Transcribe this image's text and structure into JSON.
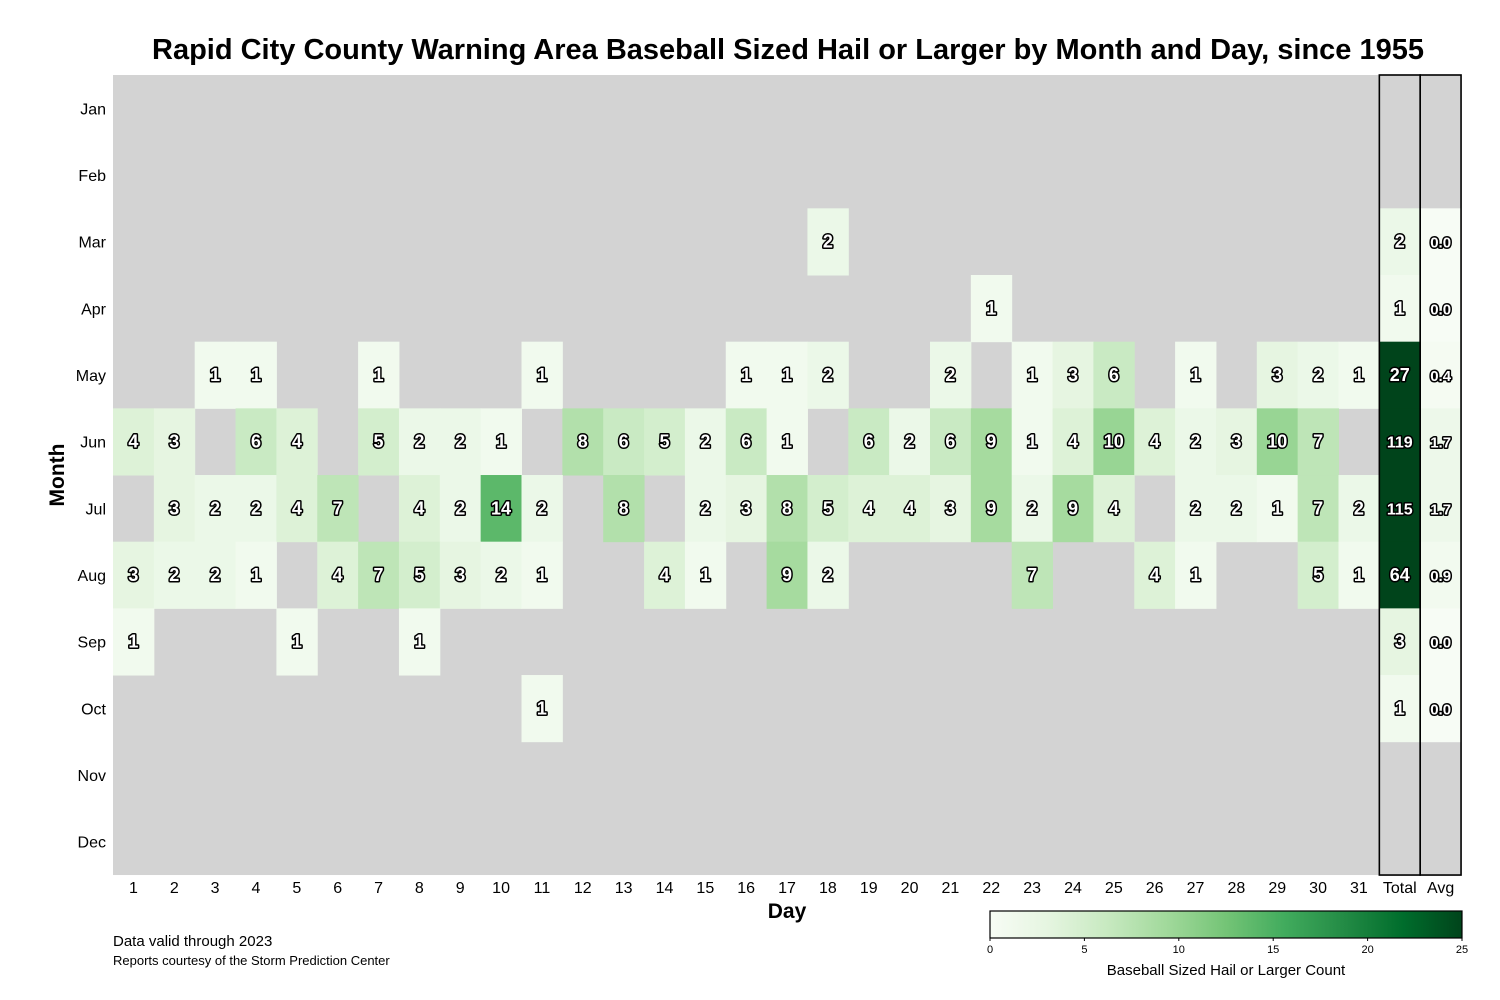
{
  "chart_data": {
    "type": "heatmap",
    "title": "Rapid City County Warning Area Baseball Sized Hail or Larger by Month and Day, since 1955",
    "xlabel": "Day",
    "ylabel": "Month",
    "x_categories": [
      "1",
      "2",
      "3",
      "4",
      "5",
      "6",
      "7",
      "8",
      "9",
      "10",
      "11",
      "12",
      "13",
      "14",
      "15",
      "16",
      "17",
      "18",
      "19",
      "20",
      "21",
      "22",
      "23",
      "24",
      "25",
      "26",
      "27",
      "28",
      "29",
      "30",
      "31"
    ],
    "summary_columns": [
      "Total",
      "Avg"
    ],
    "months": [
      "Jan",
      "Feb",
      "Mar",
      "Apr",
      "May",
      "Jun",
      "Jul",
      "Aug",
      "Sep",
      "Oct",
      "Nov",
      "Dec"
    ],
    "values": [
      [
        null,
        null,
        null,
        null,
        null,
        null,
        null,
        null,
        null,
        null,
        null,
        null,
        null,
        null,
        null,
        null,
        null,
        null,
        null,
        null,
        null,
        null,
        null,
        null,
        null,
        null,
        null,
        null,
        null,
        null,
        null
      ],
      [
        null,
        null,
        null,
        null,
        null,
        null,
        null,
        null,
        null,
        null,
        null,
        null,
        null,
        null,
        null,
        null,
        null,
        null,
        null,
        null,
        null,
        null,
        null,
        null,
        null,
        null,
        null,
        null,
        null,
        null,
        null
      ],
      [
        null,
        null,
        null,
        null,
        null,
        null,
        null,
        null,
        null,
        null,
        null,
        null,
        null,
        null,
        null,
        null,
        null,
        2,
        null,
        null,
        null,
        null,
        null,
        null,
        null,
        null,
        null,
        null,
        null,
        null,
        null
      ],
      [
        null,
        null,
        null,
        null,
        null,
        null,
        null,
        null,
        null,
        null,
        null,
        null,
        null,
        null,
        null,
        null,
        null,
        null,
        null,
        null,
        null,
        1,
        null,
        null,
        null,
        null,
        null,
        null,
        null,
        null,
        null
      ],
      [
        null,
        null,
        1,
        1,
        null,
        null,
        1,
        null,
        null,
        null,
        1,
        null,
        null,
        null,
        null,
        1,
        1,
        2,
        null,
        null,
        2,
        null,
        1,
        3,
        6,
        null,
        1,
        null,
        3,
        2,
        1
      ],
      [
        4,
        3,
        null,
        6,
        4,
        null,
        5,
        2,
        2,
        1,
        null,
        8,
        6,
        5,
        2,
        6,
        1,
        null,
        6,
        2,
        6,
        9,
        1,
        4,
        10,
        4,
        2,
        3,
        10,
        7,
        null
      ],
      [
        null,
        3,
        2,
        2,
        4,
        7,
        null,
        4,
        2,
        14,
        2,
        null,
        8,
        null,
        2,
        3,
        8,
        5,
        4,
        4,
        3,
        9,
        2,
        9,
        4,
        null,
        2,
        2,
        1,
        7,
        2
      ],
      [
        3,
        2,
        2,
        1,
        null,
        4,
        7,
        5,
        3,
        2,
        1,
        null,
        null,
        4,
        1,
        null,
        9,
        2,
        null,
        null,
        null,
        null,
        7,
        null,
        null,
        4,
        1,
        null,
        null,
        5,
        1
      ],
      [
        1,
        null,
        null,
        null,
        1,
        null,
        null,
        1,
        null,
        null,
        null,
        null,
        null,
        null,
        null,
        null,
        null,
        null,
        null,
        null,
        null,
        null,
        null,
        null,
        null,
        null,
        null,
        null,
        null,
        null,
        null
      ],
      [
        null,
        null,
        null,
        null,
        null,
        null,
        null,
        null,
        null,
        null,
        1,
        null,
        null,
        null,
        null,
        null,
        null,
        null,
        null,
        null,
        null,
        null,
        null,
        null,
        null,
        null,
        null,
        null,
        null,
        null,
        null
      ],
      [
        null,
        null,
        null,
        null,
        null,
        null,
        null,
        null,
        null,
        null,
        null,
        null,
        null,
        null,
        null,
        null,
        null,
        null,
        null,
        null,
        null,
        null,
        null,
        null,
        null,
        null,
        null,
        null,
        null,
        null,
        null
      ],
      [
        null,
        null,
        null,
        null,
        null,
        null,
        null,
        null,
        null,
        null,
        null,
        null,
        null,
        null,
        null,
        null,
        null,
        null,
        null,
        null,
        null,
        null,
        null,
        null,
        null,
        null,
        null,
        null,
        null,
        null,
        null
      ]
    ],
    "totals": [
      null,
      null,
      2,
      1,
      27,
      119,
      115,
      64,
      3,
      1,
      null,
      null
    ],
    "avg_labels": [
      null,
      null,
      "0.0",
      "0.0",
      "0.4",
      "1.7",
      "1.7",
      "0.9",
      "0.0",
      "0.0",
      null,
      null
    ],
    "colorbar": {
      "label": "Baseball Sized Hail or Larger Count",
      "range": [
        0,
        25
      ],
      "ticks": [
        0,
        5,
        10,
        15,
        20,
        25
      ],
      "colors": [
        "#f7fcf5",
        "#e5f5e0",
        "#c7e9c0",
        "#a1d99b",
        "#74c476",
        "#41ab5d",
        "#238b45",
        "#006d2c",
        "#00441b"
      ]
    },
    "missing_color": "#d3d3d3"
  },
  "footer": {
    "valid_text": "Data valid through 2023",
    "credit_text": "Reports courtesy of the Storm Prediction Center"
  }
}
